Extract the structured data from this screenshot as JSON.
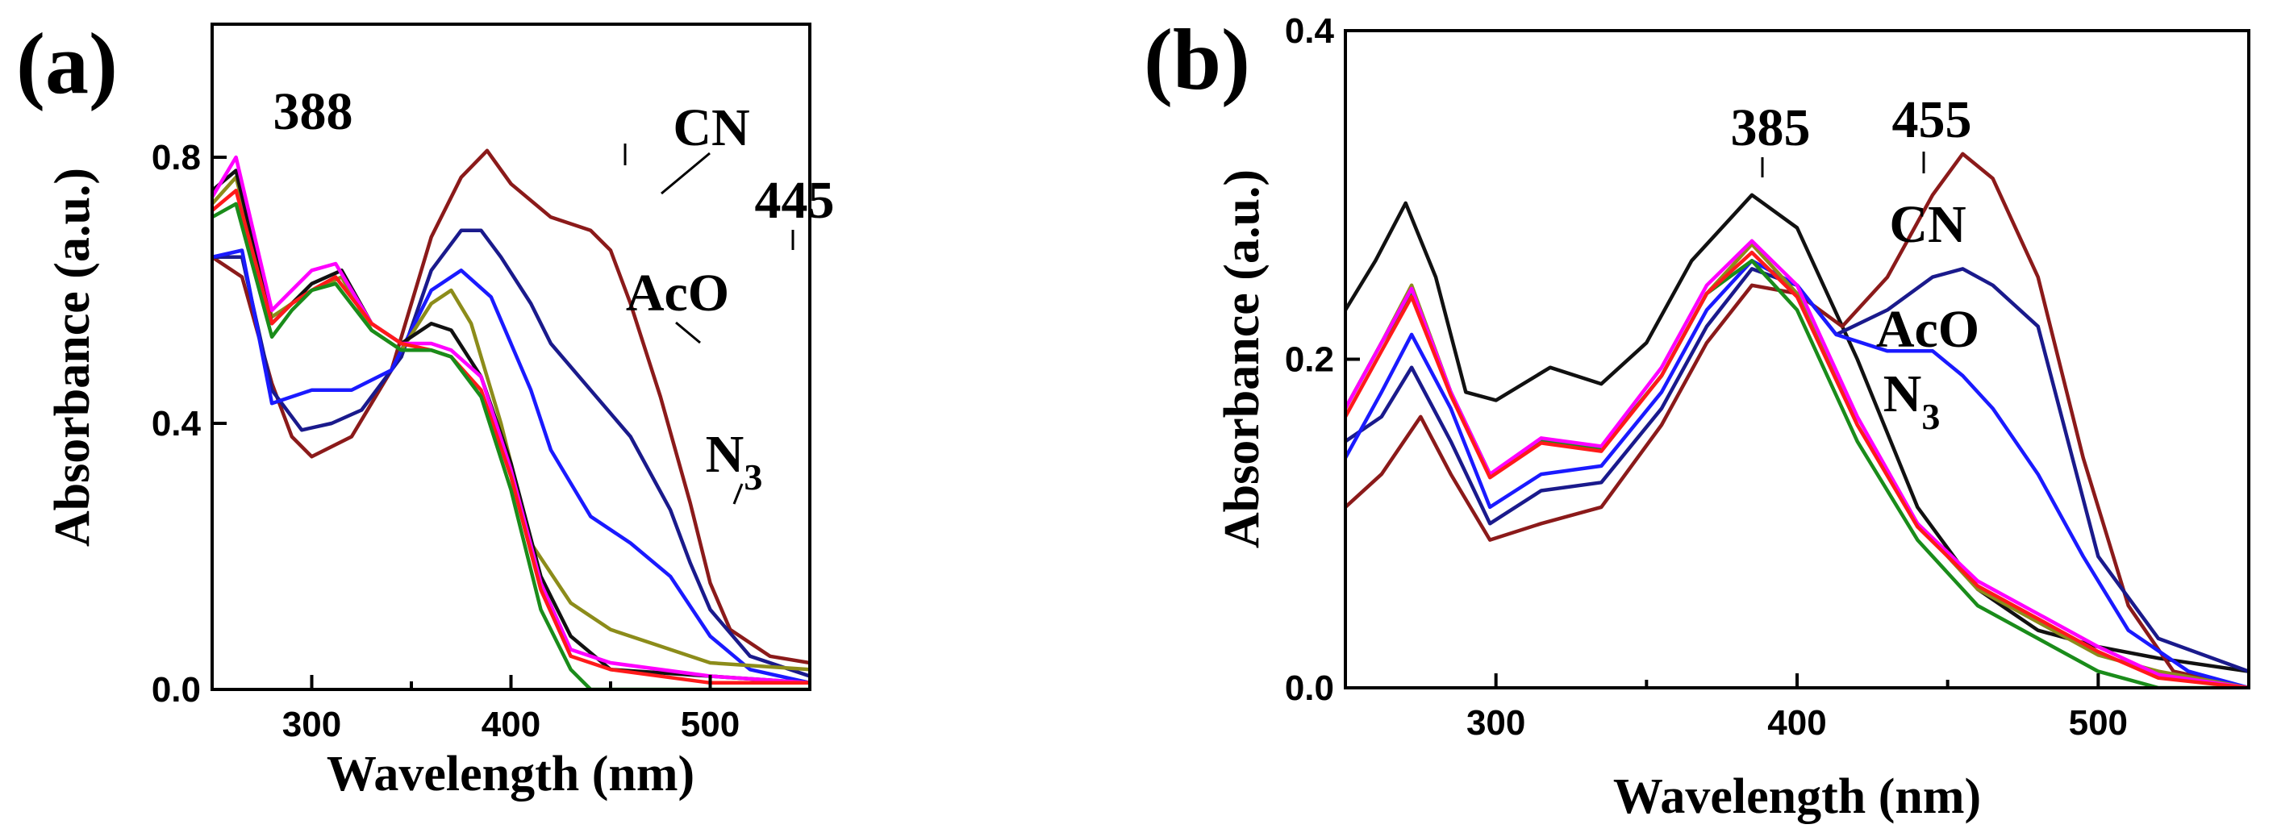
{
  "chart_data": [
    {
      "id": "a",
      "type": "line",
      "panel_label": "(a)",
      "xlabel": "Wavelength (nm)",
      "ylabel": "Absorbance (a.u.)",
      "xlim": [
        250,
        550
      ],
      "ylim": [
        0.0,
        1.0
      ],
      "xticks": [
        300,
        400,
        500
      ],
      "yticks": [
        0.0,
        0.4,
        0.8
      ],
      "ytick_labels": [
        "0.0",
        "0.4",
        "0.8"
      ],
      "annotations": [
        {
          "text": "388",
          "x": 388,
          "y": 0.81
        },
        {
          "text": "445",
          "x": 445,
          "y": 0.675
        },
        {
          "text": "CN",
          "x": 410,
          "y": 0.79
        },
        {
          "text": "AcO",
          "x": 420,
          "y": 0.58
        },
        {
          "text": "N",
          "sub": "3",
          "x": 430,
          "y": 0.36
        }
      ],
      "series": [
        {
          "name": "CN",
          "color": "#8b1a1a",
          "x": [
            250,
            265,
            280,
            290,
            300,
            320,
            340,
            360,
            375,
            388,
            400,
            420,
            440,
            450,
            460,
            475,
            490,
            500,
            510,
            530,
            550
          ],
          "y": [
            0.65,
            0.62,
            0.46,
            0.38,
            0.35,
            0.38,
            0.48,
            0.68,
            0.77,
            0.81,
            0.76,
            0.71,
            0.69,
            0.66,
            0.58,
            0.44,
            0.28,
            0.16,
            0.09,
            0.05,
            0.04
          ]
        },
        {
          "name": "AcO",
          "color": "#1a1a8c",
          "x": [
            250,
            265,
            280,
            295,
            310,
            325,
            345,
            360,
            375,
            385,
            395,
            410,
            420,
            440,
            460,
            480,
            490,
            500,
            520,
            550
          ],
          "y": [
            0.65,
            0.65,
            0.45,
            0.39,
            0.4,
            0.42,
            0.5,
            0.63,
            0.69,
            0.69,
            0.65,
            0.58,
            0.52,
            0.45,
            0.38,
            0.27,
            0.19,
            0.12,
            0.05,
            0.02
          ]
        },
        {
          "name": "N3",
          "color": "#1a1aff",
          "x": [
            250,
            265,
            280,
            300,
            320,
            340,
            360,
            375,
            390,
            410,
            420,
            440,
            460,
            480,
            500,
            520,
            550
          ],
          "y": [
            0.65,
            0.66,
            0.43,
            0.45,
            0.45,
            0.48,
            0.6,
            0.63,
            0.59,
            0.45,
            0.36,
            0.26,
            0.22,
            0.17,
            0.08,
            0.03,
            0.01
          ]
        },
        {
          "name": "olive",
          "color": "#8c8c1a",
          "x": [
            250,
            262,
            280,
            290,
            300,
            315,
            330,
            345,
            360,
            370,
            380,
            395,
            410,
            430,
            450,
            470,
            500,
            550
          ],
          "y": [
            0.73,
            0.77,
            0.56,
            0.58,
            0.6,
            0.62,
            0.54,
            0.51,
            0.58,
            0.6,
            0.55,
            0.4,
            0.22,
            0.13,
            0.09,
            0.07,
            0.04,
            0.03
          ]
        },
        {
          "name": "black",
          "color": "#111111",
          "x": [
            250,
            262,
            280,
            290,
            300,
            315,
            330,
            345,
            360,
            370,
            385,
            400,
            415,
            430,
            450,
            500,
            550
          ],
          "y": [
            0.75,
            0.78,
            0.55,
            0.58,
            0.61,
            0.63,
            0.55,
            0.52,
            0.55,
            0.54,
            0.47,
            0.34,
            0.17,
            0.08,
            0.03,
            0.02,
            0.01
          ]
        },
        {
          "name": "magenta",
          "color": "#ff00ff",
          "x": [
            250,
            262,
            280,
            290,
            300,
            312,
            330,
            345,
            360,
            370,
            385,
            400,
            415,
            430,
            450,
            500,
            550
          ],
          "y": [
            0.74,
            0.8,
            0.57,
            0.6,
            0.63,
            0.64,
            0.55,
            0.52,
            0.52,
            0.51,
            0.47,
            0.33,
            0.16,
            0.06,
            0.04,
            0.02,
            0.01
          ]
        },
        {
          "name": "red",
          "color": "#ff1a1a",
          "x": [
            250,
            262,
            280,
            290,
            300,
            312,
            330,
            345,
            360,
            370,
            385,
            400,
            415,
            430,
            450,
            500,
            550
          ],
          "y": [
            0.72,
            0.75,
            0.55,
            0.58,
            0.6,
            0.62,
            0.55,
            0.52,
            0.51,
            0.5,
            0.45,
            0.32,
            0.15,
            0.05,
            0.03,
            0.01,
            0.01
          ]
        },
        {
          "name": "green",
          "color": "#1a8c1a",
          "x": [
            250,
            262,
            280,
            290,
            300,
            312,
            330,
            345,
            360,
            370,
            385,
            400,
            415,
            430,
            440,
            460,
            500,
            550
          ],
          "y": [
            0.71,
            0.73,
            0.53,
            0.57,
            0.6,
            0.61,
            0.54,
            0.51,
            0.51,
            0.5,
            0.44,
            0.3,
            0.12,
            0.03,
            0.0,
            0.0,
            0.0,
            0.0
          ]
        }
      ]
    },
    {
      "id": "b",
      "type": "line",
      "panel_label": "(b)",
      "xlabel": "Wavelength (nm)",
      "ylabel": "Absorbance (a.u.)",
      "xlim": [
        250,
        550
      ],
      "ylim": [
        0.0,
        0.4
      ],
      "xticks": [
        300,
        400,
        500
      ],
      "yticks": [
        0.0,
        0.2,
        0.4
      ],
      "ytick_labels": [
        "0.0",
        "0.2",
        "0.4"
      ],
      "annotations": [
        {
          "text": "385",
          "x": 385,
          "y": 0.3
        },
        {
          "text": "455",
          "x": 455,
          "y": 0.325
        },
        {
          "text": "CN",
          "x": 455,
          "y": 0.275
        },
        {
          "text": "AcO",
          "x": 445,
          "y": 0.215
        },
        {
          "text": "N",
          "sub": "3",
          "x": 430,
          "y": 0.18
        }
      ],
      "series": [
        {
          "name": "black",
          "color": "#111111",
          "x": [
            250,
            260,
            270,
            280,
            290,
            300,
            318,
            335,
            350,
            365,
            385,
            400,
            420,
            440,
            460,
            480,
            500,
            520,
            550
          ],
          "y": [
            0.23,
            0.26,
            0.295,
            0.25,
            0.18,
            0.175,
            0.195,
            0.185,
            0.21,
            0.26,
            0.3,
            0.28,
            0.2,
            0.11,
            0.06,
            0.035,
            0.025,
            0.018,
            0.01
          ]
        },
        {
          "name": "CN",
          "color": "#8b1a1a",
          "x": [
            250,
            262,
            275,
            285,
            298,
            315,
            335,
            355,
            370,
            385,
            400,
            415,
            430,
            445,
            455,
            465,
            480,
            495,
            510,
            525,
            550
          ],
          "y": [
            0.11,
            0.13,
            0.165,
            0.13,
            0.09,
            0.1,
            0.11,
            0.16,
            0.21,
            0.245,
            0.24,
            0.22,
            0.25,
            0.3,
            0.325,
            0.31,
            0.25,
            0.14,
            0.05,
            0.01,
            0.0
          ]
        },
        {
          "name": "AcO",
          "color": "#1a1a8c",
          "x": [
            250,
            262,
            272,
            285,
            298,
            315,
            335,
            355,
            370,
            385,
            400,
            413,
            430,
            445,
            455,
            465,
            480,
            490,
            500,
            520,
            550
          ],
          "y": [
            0.15,
            0.165,
            0.195,
            0.15,
            0.1,
            0.12,
            0.125,
            0.17,
            0.22,
            0.255,
            0.245,
            0.215,
            0.23,
            0.25,
            0.255,
            0.245,
            0.22,
            0.15,
            0.08,
            0.03,
            0.01
          ]
        },
        {
          "name": "N3",
          "color": "#1a1aff",
          "x": [
            250,
            262,
            272,
            285,
            298,
            315,
            335,
            355,
            370,
            385,
            400,
            413,
            430,
            445,
            455,
            465,
            480,
            495,
            510,
            530,
            550
          ],
          "y": [
            0.14,
            0.18,
            0.215,
            0.17,
            0.11,
            0.13,
            0.135,
            0.18,
            0.23,
            0.26,
            0.245,
            0.215,
            0.205,
            0.205,
            0.19,
            0.17,
            0.13,
            0.08,
            0.035,
            0.01,
            0.0
          ]
        },
        {
          "name": "olive",
          "color": "#8c8c1a",
          "x": [
            250,
            262,
            272,
            285,
            298,
            315,
            335,
            355,
            370,
            385,
            400,
            420,
            440,
            460,
            480,
            500,
            520,
            550
          ],
          "y": [
            0.17,
            0.21,
            0.245,
            0.18,
            0.13,
            0.15,
            0.145,
            0.19,
            0.24,
            0.27,
            0.24,
            0.16,
            0.1,
            0.06,
            0.04,
            0.02,
            0.01,
            0.0
          ]
        },
        {
          "name": "green",
          "color": "#1a8c1a",
          "x": [
            250,
            262,
            272,
            285,
            298,
            315,
            335,
            355,
            370,
            385,
            400,
            420,
            440,
            460,
            480,
            500,
            520,
            550
          ],
          "y": [
            0.17,
            0.21,
            0.24,
            0.18,
            0.13,
            0.15,
            0.145,
            0.19,
            0.24,
            0.26,
            0.23,
            0.15,
            0.09,
            0.05,
            0.03,
            0.01,
            0.0,
            0.0
          ]
        },
        {
          "name": "magenta",
          "color": "#ff00ff",
          "x": [
            250,
            262,
            272,
            285,
            298,
            315,
            335,
            355,
            370,
            385,
            400,
            420,
            440,
            460,
            480,
            500,
            520,
            550
          ],
          "y": [
            0.17,
            0.21,
            0.243,
            0.18,
            0.13,
            0.152,
            0.147,
            0.195,
            0.245,
            0.272,
            0.245,
            0.165,
            0.1,
            0.065,
            0.045,
            0.025,
            0.008,
            0.0
          ]
        },
        {
          "name": "red",
          "color": "#ff1a1a",
          "x": [
            250,
            262,
            272,
            285,
            298,
            315,
            335,
            355,
            370,
            385,
            400,
            420,
            440,
            460,
            480,
            500,
            520,
            550
          ],
          "y": [
            0.165,
            0.205,
            0.238,
            0.178,
            0.128,
            0.149,
            0.144,
            0.19,
            0.24,
            0.265,
            0.238,
            0.16,
            0.098,
            0.062,
            0.042,
            0.022,
            0.006,
            0.0
          ]
        }
      ]
    }
  ]
}
